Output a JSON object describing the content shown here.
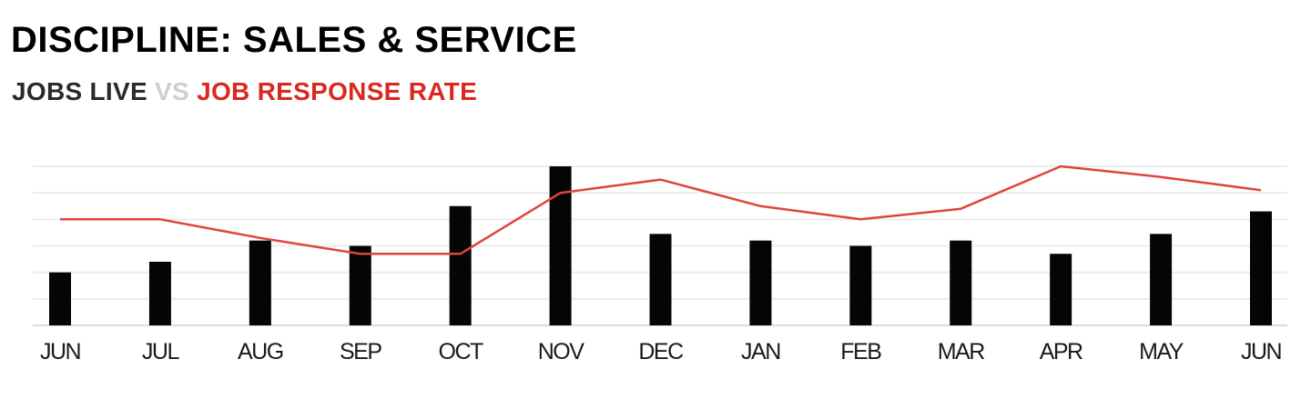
{
  "header": {
    "title": "DISCIPLINE: SALES & SERVICE",
    "subtitle_part1": "JOBS LIVE",
    "subtitle_vs": " VS ",
    "subtitle_part2": "JOB RESPONSE RATE"
  },
  "colors": {
    "bars": "#050505",
    "line": "#e0443a",
    "subtitle_vs": "#cfcfcf",
    "subtitle_accent": "#d9281f"
  },
  "chart_data": {
    "type": "bar",
    "categories": [
      "JUN",
      "JUL",
      "AUG",
      "SEP",
      "OCT",
      "NOV",
      "DEC",
      "JAN",
      "FEB",
      "MAR",
      "APR",
      "MAY",
      "JUN"
    ],
    "ylim": [
      0,
      6
    ],
    "grid": true,
    "gridlines": 6,
    "legend": "none",
    "series": [
      {
        "type": "bar",
        "values": [
          2.0,
          2.4,
          3.2,
          3.0,
          4.5,
          6.0,
          3.45,
          3.2,
          3.0,
          3.2,
          2.7,
          3.45,
          4.3
        ]
      },
      {
        "type": "line",
        "values": [
          4.0,
          4.0,
          3.3,
          2.7,
          2.7,
          5.0,
          5.5,
          4.5,
          4.0,
          4.4,
          6.0,
          5.6,
          5.1
        ]
      }
    ]
  }
}
